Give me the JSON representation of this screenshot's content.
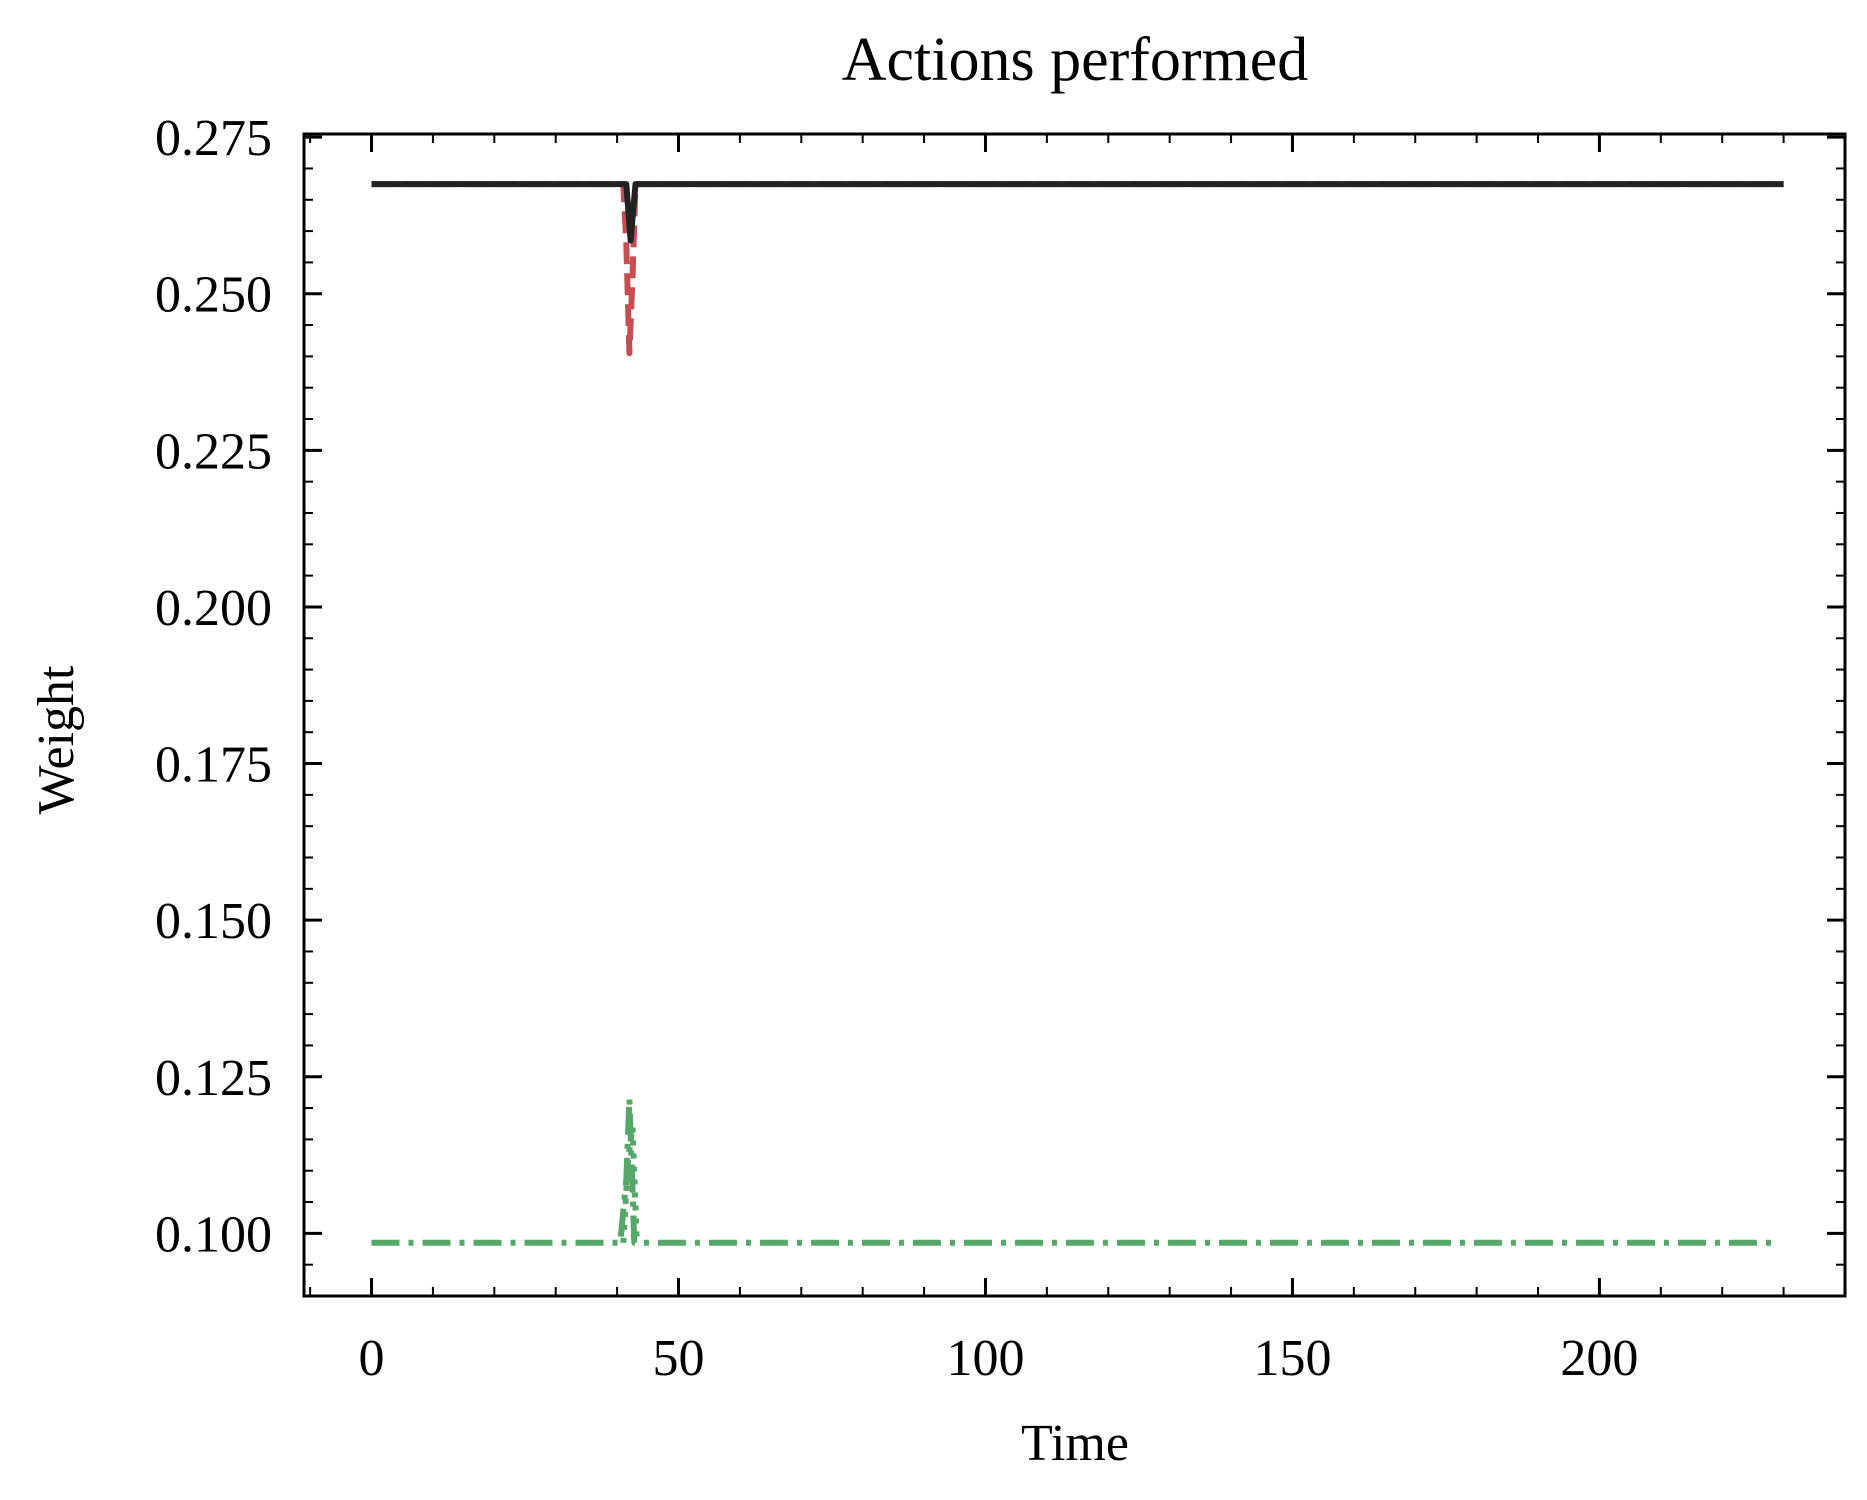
{
  "chart_data": {
    "type": "line",
    "title": "Actions performed",
    "xlabel": "Time",
    "ylabel": "Weight",
    "xlim": [
      -11,
      240
    ],
    "ylim": [
      0.09,
      0.2755
    ],
    "xticks": [
      0,
      50,
      100,
      150,
      200
    ],
    "xtick_labels": [
      "0",
      "50",
      "100",
      "150",
      "200"
    ],
    "yticks": [
      0.1,
      0.125,
      0.15,
      0.175,
      0.2,
      0.225,
      0.25,
      0.275
    ],
    "ytick_labels": [
      "0.100",
      "0.125",
      "0.150",
      "0.175",
      "0.200",
      "0.225",
      "0.250",
      "0.275"
    ],
    "grid": false,
    "legend": "none",
    "series": [
      {
        "color": "#c44e52",
        "style": "dashed",
        "points": [
          [
            0,
            0.2675
          ],
          [
            41,
            0.2675
          ],
          [
            41.5,
            0.258
          ],
          [
            42,
            0.2405
          ],
          [
            42.5,
            0.2525
          ],
          [
            43,
            0.2675
          ],
          [
            230,
            0.2675
          ]
        ]
      },
      {
        "color": "#222222",
        "style": "solid",
        "points": [
          [
            0,
            0.2675
          ],
          [
            41.5,
            0.2675
          ],
          [
            42.2,
            0.2585
          ],
          [
            43,
            0.2675
          ],
          [
            230,
            0.2675
          ]
        ]
      },
      {
        "color": "#55a868",
        "style": "dashdot",
        "points": [
          [
            0,
            0.0985
          ],
          [
            40.5,
            0.0985
          ],
          [
            41.5,
            0.1085
          ],
          [
            42,
            0.1215
          ],
          [
            42.8,
            0.0985
          ],
          [
            228,
            0.0985
          ]
        ]
      },
      {
        "color": "#55a868",
        "style": "dotted",
        "points": [
          [
            41,
            0.0985
          ],
          [
            41.8,
            0.112
          ],
          [
            42.5,
            0.117
          ],
          [
            43.2,
            0.0985
          ]
        ]
      }
    ]
  }
}
